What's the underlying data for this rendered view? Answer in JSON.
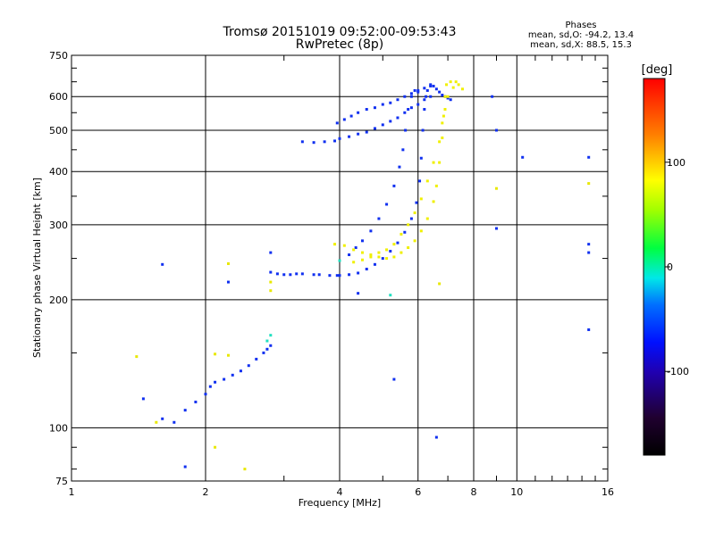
{
  "header": {
    "title": "Tromsø 20151019 09:52:00-09:53:43",
    "subtitle": "RwPretec (8p)"
  },
  "phase_box": {
    "title": "Phases",
    "line1": "mean, sd,O: -94.2, 13.4",
    "line2": "mean, sd,X:  88.5, 15.3"
  },
  "chart_data": {
    "type": "scatter",
    "xlabel": "Frequency [MHz]",
    "ylabel": "Stationary phase Virtual Height [km]",
    "x_scale": "log",
    "y_scale": "log",
    "xlim": [
      1,
      16
    ],
    "ylim": [
      75,
      750
    ],
    "x_ticks": [
      1,
      2,
      4,
      6,
      8,
      10,
      16
    ],
    "y_ticks": [
      75,
      100,
      200,
      300,
      400,
      500,
      600,
      750
    ],
    "grid": true,
    "colorbar": {
      "label": "[deg]",
      "range": [
        -180,
        180
      ],
      "ticks": [
        100,
        0,
        -100
      ]
    },
    "series": [
      {
        "values": [
          [
            4.0,
            228
          ],
          [
            4.2,
            229
          ],
          [
            4.4,
            231
          ],
          [
            4.6,
            236
          ],
          [
            4.8,
            242
          ],
          [
            5.0,
            250
          ],
          [
            5.2,
            260
          ],
          [
            5.4,
            272
          ],
          [
            5.6,
            288
          ],
          [
            5.8,
            310
          ],
          [
            5.95,
            338
          ],
          [
            6.05,
            380
          ],
          [
            6.1,
            430
          ],
          [
            6.15,
            500
          ],
          [
            6.2,
            560
          ],
          [
            6.25,
            600
          ],
          [
            6.3,
            620
          ],
          [
            6.4,
            640
          ],
          [
            6.5,
            635
          ],
          [
            6.6,
            625
          ],
          [
            6.7,
            615
          ],
          [
            6.8,
            605
          ],
          [
            6.9,
            600
          ],
          [
            7.0,
            595
          ],
          [
            7.1,
            590
          ]
        ]
      },
      {
        "values": [
          [
            4.2,
            255
          ],
          [
            4.35,
            265
          ],
          [
            4.5,
            275
          ],
          [
            4.7,
            290
          ],
          [
            4.9,
            310
          ],
          [
            5.1,
            335
          ],
          [
            5.3,
            370
          ],
          [
            5.45,
            410
          ],
          [
            5.55,
            450
          ],
          [
            5.62,
            500
          ],
          [
            5.7,
            560
          ],
          [
            5.8,
            600
          ],
          [
            5.9,
            620
          ],
          [
            6.0,
            615
          ]
        ]
      },
      {
        "values": [
          [
            4.3,
            245
          ],
          [
            4.5,
            248
          ],
          [
            4.7,
            252
          ],
          [
            4.9,
            258
          ],
          [
            5.1,
            262
          ],
          [
            5.3,
            270
          ],
          [
            5.5,
            285
          ],
          [
            5.7,
            300
          ],
          [
            5.9,
            320
          ],
          [
            6.1,
            345
          ],
          [
            6.3,
            380
          ],
          [
            6.5,
            420
          ],
          [
            6.7,
            470
          ],
          [
            6.8,
            520
          ],
          [
            6.9,
            560
          ],
          [
            7.0,
            600
          ],
          [
            7.2,
            630
          ],
          [
            7.4,
            640
          ],
          [
            7.55,
            625
          ]
        ]
      },
      {
        "values": [
          [
            3.9,
            270
          ],
          [
            4.1,
            268
          ],
          [
            4.3,
            262
          ],
          [
            4.5,
            258
          ],
          [
            4.7,
            255
          ],
          [
            4.9,
            252
          ],
          [
            5.1,
            250
          ],
          [
            5.3,
            252
          ],
          [
            5.5,
            258
          ],
          [
            5.7,
            265
          ],
          [
            5.9,
            275
          ],
          [
            6.1,
            290
          ],
          [
            6.3,
            310
          ],
          [
            6.5,
            340
          ],
          [
            6.6,
            370
          ],
          [
            6.7,
            420
          ],
          [
            6.8,
            480
          ],
          [
            6.85,
            540
          ],
          [
            6.9,
            600
          ],
          [
            6.95,
            640
          ],
          [
            7.1,
            650
          ],
          [
            7.3,
            650
          ]
        ]
      },
      {
        "values": [
          [
            3.3,
            470
          ],
          [
            3.5,
            468
          ],
          [
            3.7,
            470
          ],
          [
            3.9,
            472
          ],
          [
            4.0,
            478
          ],
          [
            4.2,
            483
          ],
          [
            4.4,
            490
          ],
          [
            4.6,
            495
          ],
          [
            4.8,
            505
          ],
          [
            5.0,
            515
          ],
          [
            5.2,
            525
          ],
          [
            5.4,
            535
          ],
          [
            5.6,
            550
          ],
          [
            5.8,
            565
          ],
          [
            6.0,
            575
          ],
          [
            6.2,
            590
          ],
          [
            6.4,
            600
          ]
        ]
      },
      {
        "values": [
          [
            3.95,
            520
          ],
          [
            4.1,
            530
          ],
          [
            4.25,
            540
          ],
          [
            4.4,
            550
          ],
          [
            4.6,
            560
          ],
          [
            4.8,
            565
          ],
          [
            5.0,
            575
          ],
          [
            5.2,
            580
          ],
          [
            5.4,
            590
          ],
          [
            5.6,
            600
          ],
          [
            5.8,
            610
          ],
          [
            6.0,
            620
          ],
          [
            6.2,
            628
          ],
          [
            6.4,
            635
          ]
        ]
      },
      {
        "values": [
          [
            2.8,
            232
          ],
          [
            2.9,
            230
          ],
          [
            3.0,
            229
          ],
          [
            3.1,
            229
          ],
          [
            3.2,
            230
          ],
          [
            3.3,
            230
          ],
          [
            3.5,
            229
          ],
          [
            3.6,
            229
          ],
          [
            3.8,
            228
          ],
          [
            3.95,
            228
          ]
        ]
      },
      {
        "values": [
          [
            1.45,
            117
          ],
          [
            1.6,
            105
          ],
          [
            1.7,
            103
          ],
          [
            1.8,
            110
          ],
          [
            1.9,
            115
          ],
          [
            2.0,
            120
          ],
          [
            2.05,
            125
          ],
          [
            2.1,
            128
          ],
          [
            2.2,
            130
          ],
          [
            2.3,
            133
          ],
          [
            2.4,
            136
          ],
          [
            2.5,
            140
          ],
          [
            2.6,
            145
          ],
          [
            2.7,
            150
          ],
          [
            2.75,
            153
          ],
          [
            2.8,
            156
          ]
        ]
      },
      {
        "values": [
          [
            1.6,
            242
          ],
          [
            2.25,
            220
          ],
          [
            2.8,
            258
          ],
          [
            9.0,
            294
          ],
          [
            14.5,
            270
          ],
          [
            14.5,
            258
          ],
          [
            14.5,
            170
          ],
          [
            10.3,
            432
          ],
          [
            14.5,
            432
          ],
          [
            8.8,
            600
          ],
          [
            9.0,
            500
          ],
          [
            6.6,
            95
          ],
          [
            5.3,
            130
          ],
          [
            4.4,
            207
          ],
          [
            1.8,
            81
          ]
        ]
      },
      {
        "values": [
          [
            1.4,
            147
          ],
          [
            2.25,
            243
          ],
          [
            2.8,
            220
          ],
          [
            2.8,
            210
          ],
          [
            2.25,
            148
          ],
          [
            2.45,
            80
          ],
          [
            2.1,
            90
          ],
          [
            1.55,
            103
          ],
          [
            6.7,
            218
          ],
          [
            9.0,
            365
          ],
          [
            14.5,
            375
          ],
          [
            2.1,
            149
          ]
        ]
      },
      {
        "values": [
          [
            2.75,
            160
          ],
          [
            2.8,
            165
          ],
          [
            5.2,
            205
          ],
          [
            4.0,
            247
          ]
        ]
      }
    ]
  }
}
